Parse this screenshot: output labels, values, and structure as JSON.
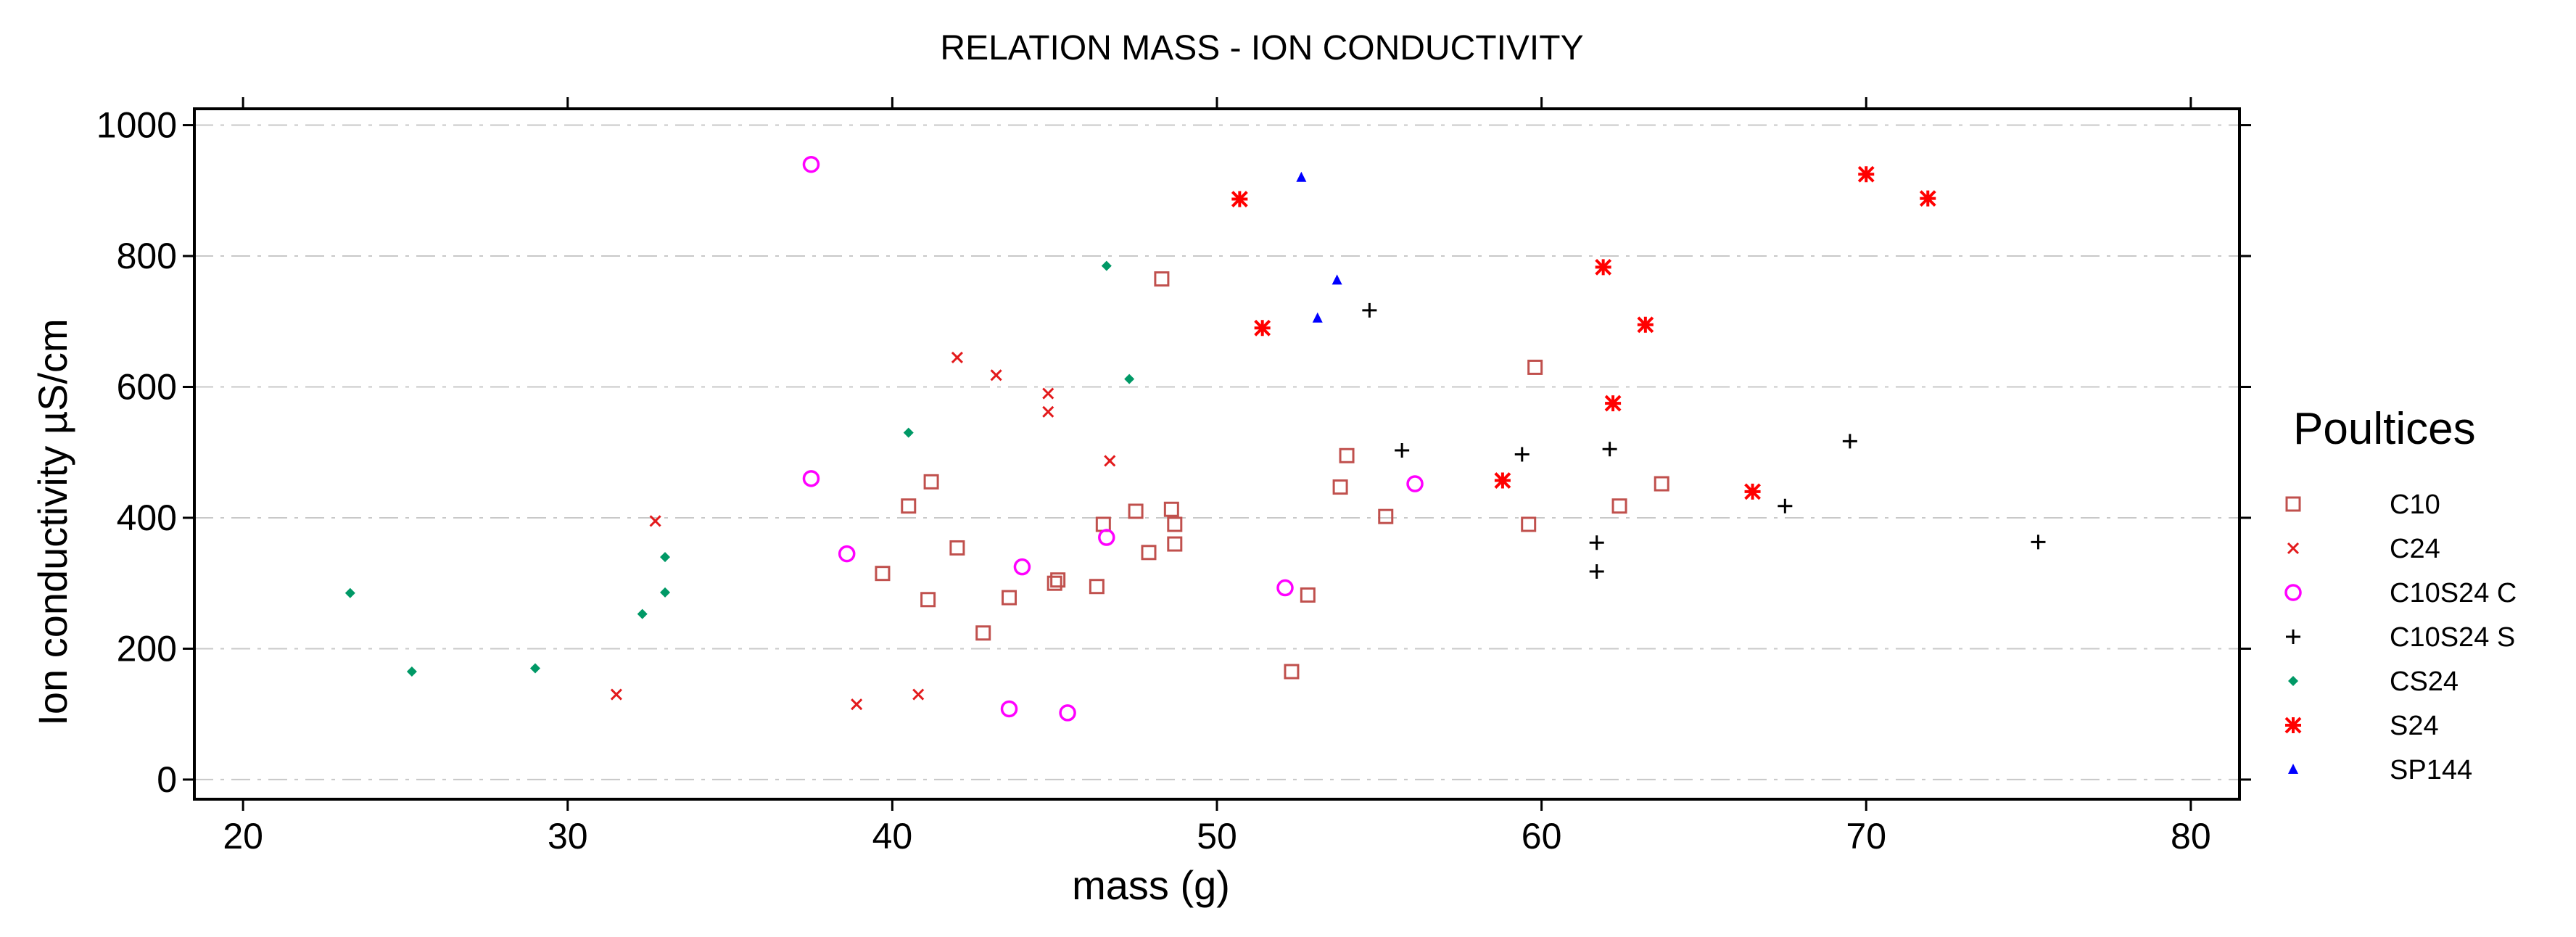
{
  "chart_data": {
    "type": "scatter",
    "title": "RELATION MASS - ION CONDUCTIVITY",
    "xlabel": "mass (g)",
    "ylabel": "Ion conductivity  µS/cm",
    "xlim": [
      18.5,
      81.5
    ],
    "ylim": [
      -30,
      1025
    ],
    "xticks": [
      20,
      30,
      40,
      50,
      60,
      70,
      80
    ],
    "yticks": [
      0,
      200,
      400,
      600,
      800,
      1000
    ],
    "grid": "horizontal-dashed",
    "legend_title": "Poultices",
    "legend_position": "right",
    "series": [
      {
        "name": "C10",
        "marker": "open-square",
        "color": "#c0504d",
        "points": [
          [
            39.7,
            315
          ],
          [
            40.5,
            418
          ],
          [
            41.1,
            275
          ],
          [
            41.2,
            455
          ],
          [
            42,
            354
          ],
          [
            42.8,
            224
          ],
          [
            43.6,
            278
          ],
          [
            45,
            300
          ],
          [
            45.1,
            305
          ],
          [
            46.3,
            295
          ],
          [
            46.5,
            390
          ],
          [
            47.5,
            410
          ],
          [
            47.9,
            347
          ],
          [
            48.3,
            765
          ],
          [
            48.6,
            413
          ],
          [
            48.7,
            390
          ],
          [
            48.7,
            360
          ],
          [
            52.3,
            165
          ],
          [
            52.8,
            282
          ],
          [
            53.8,
            447
          ],
          [
            54,
            495
          ],
          [
            55.2,
            402
          ],
          [
            59.6,
            390
          ],
          [
            59.8,
            630
          ],
          [
            62.4,
            418
          ],
          [
            63.7,
            452
          ]
        ]
      },
      {
        "name": "C24",
        "marker": "x",
        "color": "#e31a1c",
        "points": [
          [
            31.5,
            130
          ],
          [
            32.7,
            395
          ],
          [
            38.9,
            115
          ],
          [
            40.8,
            130
          ],
          [
            42,
            645
          ],
          [
            43.2,
            618
          ],
          [
            44.8,
            590
          ],
          [
            44.8,
            562
          ],
          [
            46.7,
            487
          ]
        ]
      },
      {
        "name": "C10S24 C",
        "marker": "open-circle",
        "color": "#ff00ff",
        "points": [
          [
            37.5,
            940
          ],
          [
            37.5,
            460
          ],
          [
            38.6,
            345
          ],
          [
            43.6,
            108
          ],
          [
            44,
            325
          ],
          [
            45.4,
            102
          ],
          [
            46.6,
            370
          ],
          [
            52.1,
            293
          ],
          [
            56.1,
            452
          ]
        ]
      },
      {
        "name": "C10S24 S",
        "marker": "plus",
        "color": "#000000",
        "points": [
          [
            54.7,
            717
          ],
          [
            55.7,
            503
          ],
          [
            59.4,
            497
          ],
          [
            61.7,
            362
          ],
          [
            61.7,
            318
          ],
          [
            62.1,
            505
          ],
          [
            67.5,
            418
          ],
          [
            69.5,
            517
          ],
          [
            75.3,
            363
          ]
        ]
      },
      {
        "name": "CS24",
        "marker": "diamond",
        "color": "#009966",
        "points": [
          [
            23.3,
            285
          ],
          [
            25.2,
            165
          ],
          [
            29,
            170
          ],
          [
            32.3,
            253
          ],
          [
            33,
            340
          ],
          [
            33,
            286
          ],
          [
            40.5,
            530
          ],
          [
            46.6,
            785
          ],
          [
            47.3,
            612
          ]
        ]
      },
      {
        "name": "S24",
        "marker": "star",
        "color": "#ff0000",
        "points": [
          [
            50.7,
            887
          ],
          [
            51.4,
            690
          ],
          [
            58.8,
            457
          ],
          [
            61.9,
            783
          ],
          [
            62.2,
            575
          ],
          [
            63.2,
            695
          ],
          [
            66.5,
            440
          ],
          [
            70,
            925
          ],
          [
            71.9,
            888
          ]
        ]
      },
      {
        "name": "SP144",
        "marker": "triangle",
        "color": "#0000ff",
        "points": [
          [
            52.6,
            920
          ],
          [
            53.1,
            705
          ],
          [
            53.7,
            763
          ]
        ]
      }
    ]
  }
}
